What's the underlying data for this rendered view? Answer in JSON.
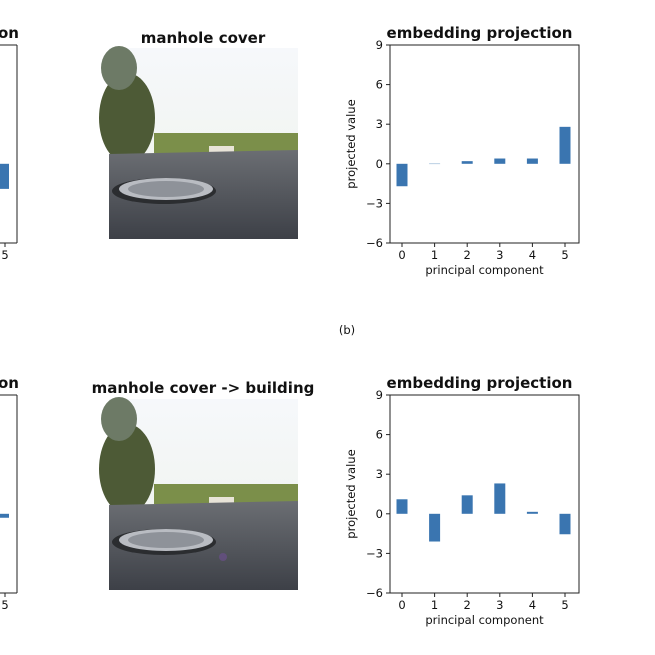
{
  "figure": {
    "panel_label": "(b)",
    "rows": [
      {
        "image_caption": "manhole cover",
        "image_icon": "road-manhole-photo"
      },
      {
        "image_caption": "manhole cover -> building",
        "image_icon": "road-manhole-photo-perturbed"
      }
    ]
  },
  "chart_data": [
    {
      "type": "bar",
      "title": "embedding projection",
      "xlabel": "principal component",
      "ylabel": "projected value",
      "categories": [
        "0",
        "1",
        "2",
        "3",
        "4",
        "5"
      ],
      "values": [
        -1.7,
        0.05,
        0.2,
        0.4,
        0.4,
        2.8
      ],
      "yticks": [
        "9",
        "6",
        "3",
        "0",
        "−3",
        "−6"
      ],
      "ylim": [
        -6,
        9
      ],
      "grid": false,
      "color": "#3a75b0"
    },
    {
      "type": "bar",
      "title": "embedding projection",
      "xlabel": "principal component",
      "ylabel": "projected value",
      "categories": [
        "0",
        "1",
        "2",
        "3",
        "4",
        "5"
      ],
      "values": [
        1.1,
        -2.1,
        1.4,
        2.3,
        0.15,
        -1.55
      ],
      "yticks": [
        "9",
        "6",
        "3",
        "0",
        "−3",
        "−6"
      ],
      "ylim": [
        -6,
        9
      ],
      "grid": false,
      "color": "#3a75b0"
    },
    {
      "type": "bar",
      "title_fragment": "on",
      "categories": [
        "5"
      ],
      "values": [
        -1.9
      ],
      "ylim": [
        -6,
        9
      ],
      "color": "#3a75b0"
    },
    {
      "type": "bar",
      "title_fragment": "on",
      "categories": [
        "5"
      ],
      "values": [
        -0.3
      ],
      "ylim": [
        -6,
        9
      ],
      "color": "#3a75b0"
    }
  ]
}
